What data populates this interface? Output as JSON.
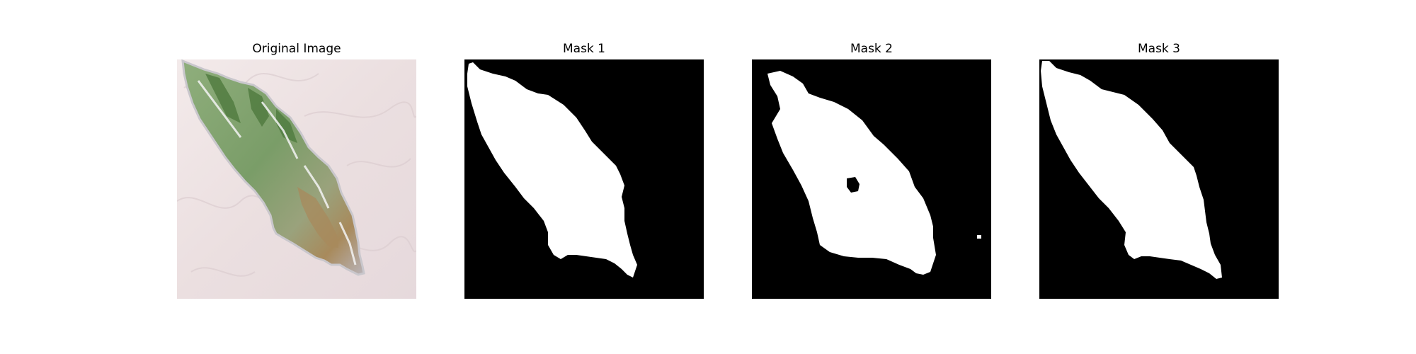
{
  "panels": [
    {
      "title": "Original Image",
      "kind": "photo"
    },
    {
      "title": "Mask 1",
      "kind": "mask"
    },
    {
      "title": "Mask 2",
      "kind": "mask"
    },
    {
      "title": "Mask 3",
      "kind": "mask"
    }
  ],
  "colors": {
    "mask_background": "#000000",
    "mask_foreground": "#ffffff",
    "photo_background": "#ede3e3",
    "leaf_green": "#7fa06c",
    "leaf_dark_green": "#4f7a3e",
    "leaf_brown": "#a88a5c"
  }
}
